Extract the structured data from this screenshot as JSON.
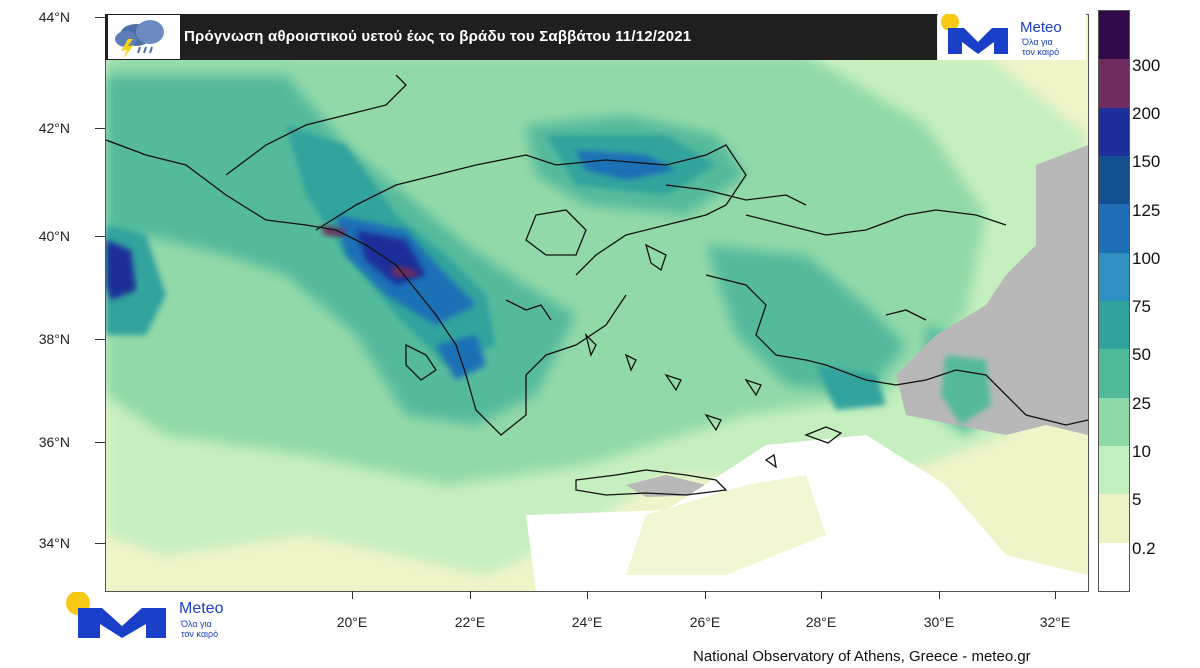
{
  "title": "Πρόγνωση αθροιστικού υετού έως το βράδυ του Σαββάτου 11/12/2021",
  "brand": {
    "name": "Meteo",
    "tagline_line1": "Όλα για",
    "tagline_line2": "τον καιρό"
  },
  "credit": "National Observatory of Athens, Greece - meteo.gr",
  "axes": {
    "lat_labels": [
      "44°N",
      "42°N",
      "40°N",
      "38°N",
      "36°N",
      "34°N"
    ],
    "lon_labels": [
      "20°E",
      "22°E",
      "24°E",
      "26°E",
      "28°E",
      "30°E",
      "32°E"
    ]
  },
  "legend": {
    "labels": [
      "300",
      "200",
      "150",
      "125",
      "100",
      "75",
      "50",
      "25",
      "10",
      "5",
      "0.2"
    ],
    "colors": [
      "#2e0a4a",
      "#6e2d5e",
      "#1b2e99",
      "#14508f",
      "#1f6fb6",
      "#2e8fc0",
      "#31a39c",
      "#52b89a",
      "#8ed8a8",
      "#c0eebc",
      "#eef2c4",
      "#ffffff"
    ]
  },
  "icons": {
    "weather": "rain-cloud-lightning-icon",
    "logo": "meteo-m-logo-icon"
  }
}
